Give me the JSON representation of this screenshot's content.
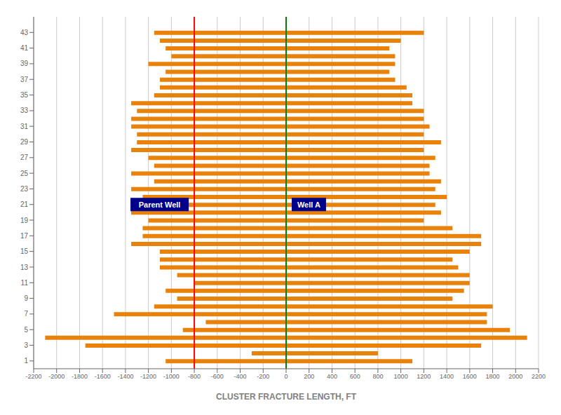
{
  "chart_data": {
    "type": "bar",
    "orientation": "horizontal",
    "stacked": true,
    "xlabel": "CLUSTER FRACTURE LENGTH, FT",
    "categories": [
      43,
      42,
      41,
      40,
      39,
      38,
      37,
      36,
      35,
      34,
      33,
      32,
      31,
      30,
      29,
      28,
      27,
      26,
      25,
      24,
      23,
      22,
      21,
      20,
      19,
      18,
      17,
      16,
      15,
      14,
      13,
      12,
      11,
      10,
      9,
      8,
      7,
      6,
      5,
      4,
      3,
      2,
      1
    ],
    "series": [
      {
        "color": "#e8820a",
        "values": [
          -1150,
          -1100,
          -1050,
          -1000,
          -1200,
          -1050,
          -1100,
          -1100,
          -1150,
          -1350,
          -1300,
          -1350,
          -1350,
          -1300,
          -1300,
          -1350,
          -1200,
          -1150,
          -1350,
          -1150,
          -1350,
          -1250,
          -1250,
          -1350,
          -1200,
          -1250,
          -1250,
          -1350,
          -1100,
          -1100,
          -1100,
          -950,
          -800,
          -1050,
          -950,
          -1150,
          -1500,
          -700,
          -900,
          -2100,
          -1750,
          -300,
          -1050
        ]
      },
      {
        "color": "#e8820a",
        "values": [
          1200,
          1000,
          900,
          950,
          950,
          900,
          950,
          1050,
          1100,
          1100,
          1200,
          1200,
          1250,
          1200,
          1350,
          1200,
          1300,
          1250,
          1250,
          1350,
          1300,
          1400,
          1300,
          1350,
          1200,
          1450,
          1700,
          1700,
          1600,
          1450,
          1500,
          1600,
          1600,
          1550,
          1450,
          1800,
          1750,
          1750,
          1950,
          2100,
          1700,
          800,
          1100
        ]
      }
    ],
    "xlim": [
      -2200,
      2200
    ],
    "xticks": [
      -2200,
      -2000,
      -1800,
      -1600,
      -1400,
      -1200,
      -1000,
      -800,
      -600,
      -400,
      -200,
      0,
      200,
      400,
      600,
      800,
      1000,
      1200,
      1400,
      1600,
      1800,
      2000,
      2200
    ],
    "ylim": [
      0,
      45
    ],
    "yticks": [
      1,
      3,
      5,
      7,
      9,
      11,
      13,
      15,
      17,
      19,
      21,
      23,
      25,
      27,
      29,
      31,
      33,
      35,
      37,
      39,
      41,
      43
    ],
    "grid": "x",
    "annotations": [
      {
        "type": "vline",
        "x": -800,
        "color": "red",
        "label": "Parent Well",
        "y": 21,
        "label_color": "white",
        "label_background": "#00008B"
      },
      {
        "type": "vline",
        "x": 0,
        "color": "green",
        "label": "Well A",
        "y": 21,
        "label_color": "white",
        "label_background": "#00008B"
      }
    ]
  }
}
